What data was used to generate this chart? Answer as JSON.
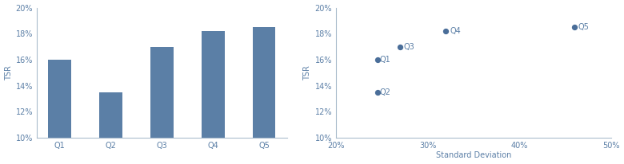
{
  "bar_categories": [
    "Q1",
    "Q2",
    "Q3",
    "Q4",
    "Q5"
  ],
  "bar_values": [
    0.16,
    0.135,
    0.17,
    0.182,
    0.185
  ],
  "bar_color": "#5b7fa6",
  "bar_ylim": [
    0.1,
    0.2
  ],
  "bar_yticks": [
    0.1,
    0.12,
    0.14,
    0.16,
    0.18,
    0.2
  ],
  "bar_ylabel": "TSR",
  "scatter_labels": [
    "Q4",
    "Q5",
    "Q3",
    "Q1",
    "Q2"
  ],
  "scatter_x": [
    0.32,
    0.46,
    0.27,
    0.245,
    0.245
  ],
  "scatter_y": [
    0.182,
    0.185,
    0.17,
    0.16,
    0.135
  ],
  "scatter_xlim": [
    0.2,
    0.5
  ],
  "scatter_xticks": [
    0.2,
    0.3,
    0.4,
    0.5
  ],
  "scatter_ylim": [
    0.1,
    0.2
  ],
  "scatter_yticks": [
    0.1,
    0.12,
    0.14,
    0.16,
    0.18,
    0.2
  ],
  "scatter_ylabel": "TSR",
  "scatter_xlabel": "Standard Deviation",
  "dot_color": "#4a6e99",
  "dot_size": 18,
  "background_color": "#ffffff",
  "spine_color": "#aabccc",
  "tick_color": "#5b7fa6",
  "text_color": "#5b7fa6",
  "fontsize": 7
}
